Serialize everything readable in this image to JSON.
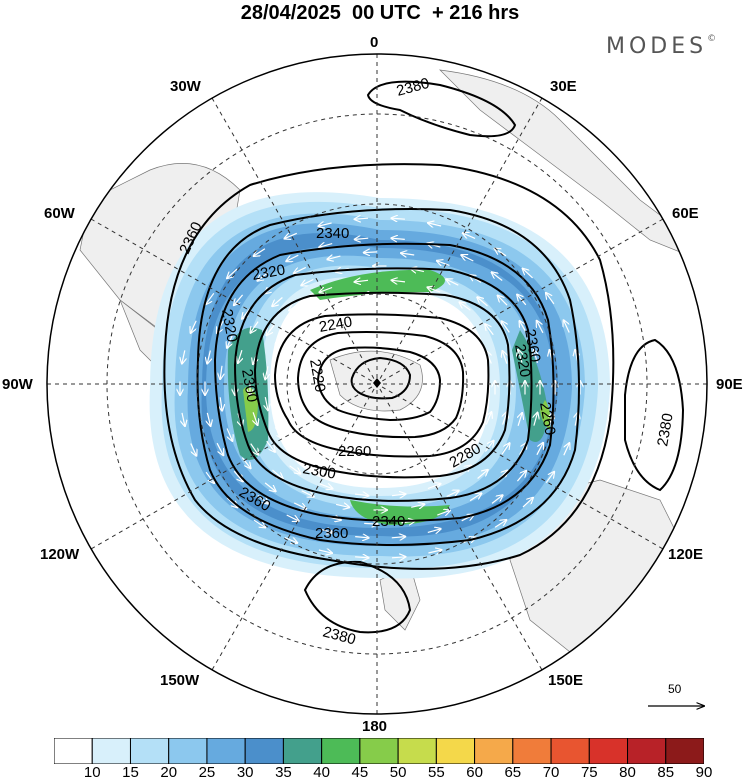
{
  "title": "28/04/2025  00 UTC  + 216 hrs",
  "brand": "MODES",
  "brand_mark": "©",
  "longitude_labels": {
    "n": "0",
    "nne": "30E",
    "ene": "60E",
    "e": "90E",
    "ese": "120E",
    "sse": "150E",
    "s": "180",
    "ssw": "150W",
    "wsw": "120W",
    "w": "90W",
    "wnw": "60W",
    "nnw": "30W"
  },
  "contour_labels": {
    "a": "2380",
    "b": "2380",
    "c": "2380",
    "d": "2360",
    "e": "2360",
    "f": "2360",
    "g": "2360",
    "h": "2340",
    "i": "2340",
    "j": "2320",
    "k": "2320",
    "l": "2320",
    "m": "2300",
    "n": "2300",
    "o": "2280",
    "p": "2260",
    "q": "2260",
    "r": "2240",
    "s": "2220"
  },
  "vector_scale": {
    "label": "50"
  },
  "colorbar": {
    "labels": [
      "10",
      "15",
      "20",
      "25",
      "30",
      "35",
      "40",
      "45",
      "50",
      "55",
      "60",
      "65",
      "70",
      "75",
      "80",
      "85",
      "90"
    ],
    "colors": [
      "#ffffff",
      "#d8f0fb",
      "#b4e0f7",
      "#8cc8ee",
      "#66aadf",
      "#4b8fcb",
      "#43a08c",
      "#4dbb57",
      "#86cc4a",
      "#c6dc4c",
      "#f4d84a",
      "#f5a94a",
      "#f07c3a",
      "#e85530",
      "#d8322a",
      "#b82228",
      "#8c1a1a"
    ]
  },
  "field_layers": [
    {
      "name": "ring-15",
      "color": "#d8f0fb"
    },
    {
      "name": "ring-20",
      "color": "#b4e0f7"
    },
    {
      "name": "ring-25",
      "color": "#8cc8ee"
    },
    {
      "name": "ring-30",
      "color": "#66aadf"
    },
    {
      "name": "ring-35",
      "color": "#4b8fcb"
    },
    {
      "name": "jet-40",
      "color": "#43a08c"
    },
    {
      "name": "jet-45",
      "color": "#4dbb57"
    },
    {
      "name": "jet-50",
      "color": "#86cc4a"
    }
  ],
  "land_color": "#efefef",
  "pole_marker_icon": "diamond-icon",
  "scale_arrow_icon": "arrow-right-icon"
}
